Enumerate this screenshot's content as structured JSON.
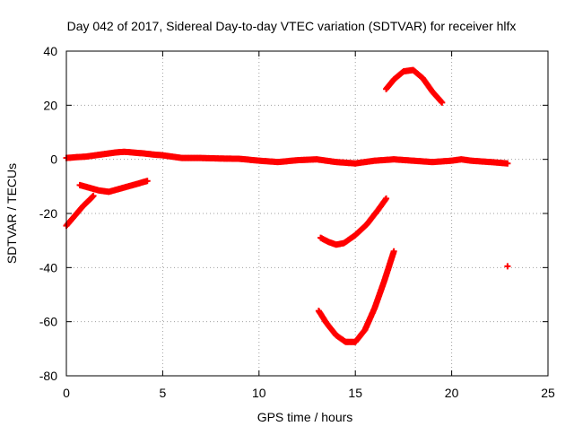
{
  "chart_data": {
    "type": "scatter",
    "title": "Day 042 of 2017, Sidereal Day-to-day VTEC variation (SDTVAR) for receiver hlfx",
    "xlabel": "GPS time / hours",
    "ylabel": "SDTVAR / TECUs",
    "xlim": [
      0,
      25
    ],
    "ylim": [
      -80,
      40
    ],
    "xticks": [
      0,
      5,
      10,
      15,
      20,
      25
    ],
    "yticks": [
      -80,
      -60,
      -40,
      -20,
      0,
      20,
      40
    ],
    "xtick_labels": [
      "0",
      "5",
      "10",
      "15",
      "20",
      "25"
    ],
    "ytick_labels": [
      "-80",
      "-60",
      "-40",
      "-20",
      "0",
      "20",
      "40"
    ],
    "grid": true,
    "grid_style": "dotted",
    "series_color": "#ff0000",
    "marker": "plus",
    "series": [
      {
        "segment": "baseline",
        "x": [
          0,
          0.5,
          1,
          1.5,
          2,
          2.5,
          3,
          3.5,
          4,
          4.5,
          5,
          5.5,
          6,
          7,
          8,
          9,
          10,
          11,
          12,
          13,
          14,
          15,
          16,
          17,
          18,
          19,
          20,
          20.5,
          21,
          22,
          22.9
        ],
        "y": [
          0.5,
          0.8,
          1,
          1.5,
          2,
          2.5,
          2.8,
          2.5,
          2.2,
          1.8,
          1.5,
          1,
          0.5,
          0.5,
          0.3,
          0.2,
          -0.5,
          -1,
          -0.3,
          0,
          -1,
          -1.5,
          -0.5,
          0,
          -0.5,
          -1,
          -0.5,
          0,
          -0.5,
          -1,
          -1.5
        ]
      },
      {
        "segment": "early-rise",
        "x": [
          0,
          0.3,
          0.6,
          0.9,
          1.2,
          1.4
        ],
        "y": [
          -24.5,
          -22,
          -19.5,
          -17,
          -15,
          -13.5
        ]
      },
      {
        "segment": "early-dip",
        "x": [
          0.7,
          1.2,
          1.7,
          2.2,
          2.7,
          3.2,
          3.7,
          4.2
        ],
        "y": [
          -9.5,
          -10.5,
          -11.5,
          -12,
          -11,
          -10,
          -9,
          -8
        ]
      },
      {
        "segment": "upper-arc",
        "x": [
          16.6,
          17,
          17.5,
          18,
          18.5,
          19,
          19.5
        ],
        "y": [
          26,
          29.5,
          32.5,
          33,
          30,
          25,
          21
        ]
      },
      {
        "segment": "mid-arc",
        "x": [
          13.2,
          13.6,
          14,
          14.4,
          15,
          15.6,
          16.2,
          16.6
        ],
        "y": [
          -29,
          -30.5,
          -31.5,
          -31,
          -28,
          -24,
          -18.5,
          -14.5
        ]
      },
      {
        "segment": "deep-arc",
        "x": [
          13.1,
          13.5,
          14,
          14.5,
          15,
          15.5,
          16,
          16.5,
          17
        ],
        "y": [
          -56,
          -60.5,
          -65,
          -67.5,
          -67.5,
          -63,
          -55,
          -45,
          -34
        ]
      },
      {
        "segment": "isolated",
        "x": [
          22.9
        ],
        "y": [
          -39.5
        ]
      }
    ]
  }
}
